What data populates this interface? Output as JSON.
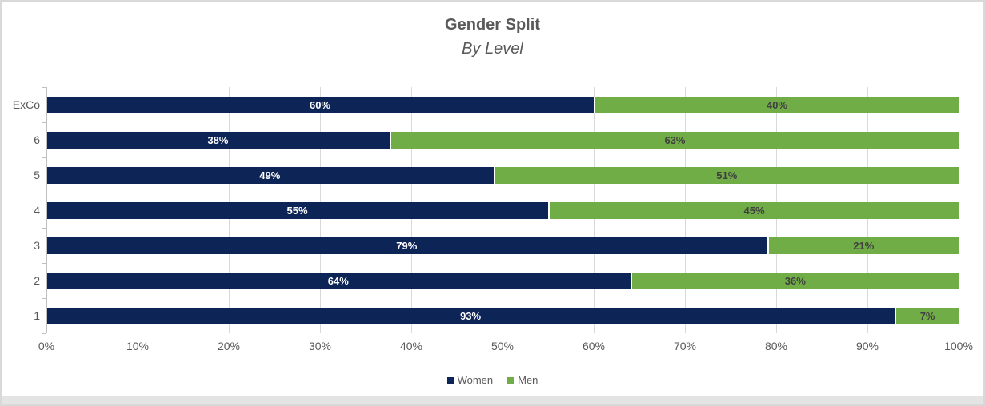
{
  "title": {
    "line1": "Gender Split",
    "line2": "By Level"
  },
  "chart_data": {
    "type": "bar",
    "orientation": "horizontal",
    "stacked": true,
    "title": "Gender Split",
    "subtitle": "By Level",
    "categories": [
      "ExCo",
      "6",
      "5",
      "4",
      "3",
      "2",
      "1"
    ],
    "series": [
      {
        "name": "Women",
        "color": "#0D2456",
        "label_color": "#FFFFFF",
        "values": [
          60,
          38,
          49,
          55,
          79,
          64,
          93
        ],
        "labels": [
          "60%",
          "38%",
          "49%",
          "55%",
          "79%",
          "64%",
          "93%"
        ]
      },
      {
        "name": "Men",
        "color": "#70AD47",
        "label_color": "#404040",
        "values": [
          40,
          63,
          51,
          45,
          21,
          36,
          7
        ],
        "labels": [
          "40%",
          "63%",
          "51%",
          "45%",
          "21%",
          "36%",
          "7%"
        ]
      }
    ],
    "x_axis": {
      "min": 0,
      "max": 100,
      "tick_labels": [
        "0%",
        "10%",
        "20%",
        "30%",
        "40%",
        "50%",
        "60%",
        "70%",
        "80%",
        "90%",
        "100%"
      ]
    },
    "grid": true,
    "legend": {
      "position": "bottom",
      "entries": [
        "Women",
        "Men"
      ]
    }
  },
  "legend": {
    "items": [
      {
        "label": "Women",
        "color": "#0D2456"
      },
      {
        "label": "Men",
        "color": "#70AD47"
      }
    ]
  },
  "colors": {
    "title_text": "#595959",
    "axis_text": "#595959",
    "gridline": "#D9D9D9",
    "axis_line": "#BFBFBF"
  }
}
